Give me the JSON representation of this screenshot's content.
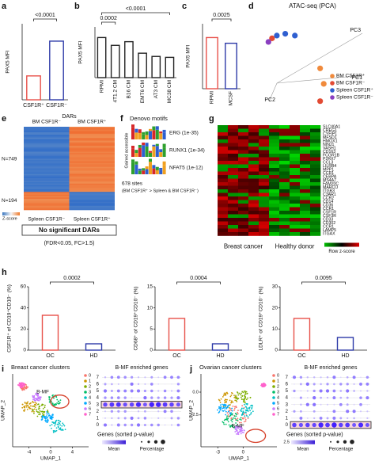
{
  "chart_data": [
    {
      "panel": "a",
      "type": "bar",
      "ylabel": "PAX5 MFI",
      "categories": [
        "CSF1R⁺",
        "CSF1R⁻"
      ],
      "values": [
        1100,
        2700
      ],
      "colors": [
        "#e8514a",
        "#2d3aa8"
      ],
      "ylim": [
        0,
        3500
      ],
      "annotations": [
        "<0.0001"
      ]
    },
    {
      "panel": "b",
      "type": "bar",
      "ylabel": "PAX5 MFI",
      "categories": [
        "RPMI",
        "4T1.2 CM",
        "B16 CM",
        "EMT6 CM",
        "AT3 CM",
        "MC38 CM"
      ],
      "values": [
        870,
        700,
        780,
        530,
        460,
        440
      ],
      "colors": [
        "#222222",
        "#222222",
        "#222222",
        "#222222",
        "#222222",
        "#222222"
      ],
      "ylim": [
        0,
        1100
      ],
      "annotations": [
        "0.0002",
        "<0.0001"
      ]
    },
    {
      "panel": "c",
      "type": "bar",
      "ylabel": "PAX5 MFI",
      "categories": [
        "RPMI",
        "MCSF"
      ],
      "values": [
        3150,
        2800
      ],
      "colors": [
        "#e8514a",
        "#2d3aa8"
      ],
      "ylim": [
        0,
        4000
      ],
      "annotations": [
        "0.0025"
      ]
    },
    {
      "panel": "d",
      "type": "scatter",
      "title": "ATAC-seq (PCA)",
      "axis_labels": [
        "PC1",
        "PC2",
        "PC3"
      ],
      "xlim": [
        0,
        100
      ],
      "ylim": [
        0,
        100
      ],
      "series": [
        {
          "name": "BM CSF1R⁺",
          "color": "#f08a3c",
          "x": [
            57,
            60
          ],
          "y": [
            38,
            21
          ]
        },
        {
          "name": "BM CSF1R⁻",
          "color": "#e24a33",
          "x": [
            57,
            17
          ],
          "y": [
            2,
            71
          ]
        },
        {
          "name": "Spleen CSF1R⁺",
          "color": "#2f5fd0",
          "x": [
            21,
            28,
            36
          ],
          "y": [
            74,
            76,
            74
          ]
        },
        {
          "name": "Spleen CSF1R⁻",
          "color": "#8a3fc0",
          "x": [
            14
          ],
          "y": [
            67
          ]
        }
      ]
    },
    {
      "panel": "e",
      "type": "heatmap",
      "title": "DARs",
      "columns": [
        "BM CSF1R⁻",
        "BM CSF1R⁺"
      ],
      "row_groups": [
        "N=749",
        "N=194"
      ],
      "key_label": "Z-score",
      "lower_columns": [
        "Spleen CSF1R⁻",
        "Spleen CSF1R⁺"
      ],
      "note": "No significant DARs",
      "criteria": "(FDR<0.05, FC>1.5)"
    },
    {
      "panel": "f",
      "type": "motifs",
      "title": "Denovo motifs",
      "ylabel": "Gained accessible",
      "motifs": [
        "ERG (1e-35)",
        "RUNX1 (1e-34)",
        "NFAT5 (1e-12)"
      ],
      "sites": "678 sites",
      "comparison": "(BM CSF1R⁺ > Spleen & BM CSF1R⁻)"
    },
    {
      "panel": "g",
      "type": "heatmap",
      "genes": [
        "SLC40A1",
        "CREG1",
        "CYFIP1",
        "MFSD1",
        "HMOX1",
        "NINJ1",
        "VASH1",
        "CD163",
        "FCGR1B",
        "P2RX7",
        "CCL3",
        "LILRB4",
        "MPP1",
        "CCR1",
        "CEBPA",
        "MS4A7",
        "FAM20C",
        "MARCO",
        "ITGB3",
        "C3AR1",
        "CCR2",
        "CD14",
        "CD36",
        "CCR1",
        "CSF1R",
        "CSF3R",
        "CD33",
        "CD302",
        "CCR1",
        "LAMP5",
        "ITGAX"
      ],
      "groups": [
        "Breast cancer",
        "Healthy donor"
      ],
      "key_label": "Row z-score"
    },
    {
      "panel": "h",
      "type": "bar",
      "ylabel": "CSF1R⁺ of CD19⁺CD10⁻ (%)",
      "categories": [
        "OC",
        "HD"
      ],
      "values": [
        33,
        6
      ],
      "colors": [
        "#e8514a",
        "#2d3aa8"
      ],
      "ylim": [
        0,
        60
      ],
      "yticks": [
        0,
        20,
        40,
        60
      ],
      "annotations": [
        "0.0002"
      ]
    },
    {
      "type": "bar",
      "ylabel": "CD68⁺ of CD19⁺CD10⁻ (%)",
      "categories": [
        "OC",
        "HD"
      ],
      "values": [
        7.5,
        1.5
      ],
      "colors": [
        "#e8514a",
        "#2d3aa8"
      ],
      "ylim": [
        0,
        15
      ],
      "yticks": [
        0,
        5,
        10,
        15
      ],
      "annotations": [
        "0.0004"
      ]
    },
    {
      "type": "bar",
      "ylabel": "LDLR⁺ of CD19⁺CD10⁻ (%)",
      "categories": [
        "OC",
        "HD"
      ],
      "values": [
        15,
        6
      ],
      "colors": [
        "#e8514a",
        "#2d3aa8"
      ],
      "ylim": [
        0,
        30
      ],
      "yticks": [
        0,
        10,
        20,
        30
      ],
      "annotations": [
        "0.0095"
      ]
    },
    {
      "panel": "i",
      "type": "umap",
      "title": "Breast cancer clusters",
      "highlight": "B-MF",
      "highlight_cluster": "3",
      "xlabel": "UMAP_1",
      "ylabel": "UMAP_2",
      "xlim": [
        -7,
        7
      ],
      "xticks": [
        -4,
        0,
        4
      ],
      "clusters": [
        "0",
        "1",
        "2",
        "3",
        "4",
        "5",
        "6",
        "7"
      ],
      "cluster_colors": [
        "#F8766D",
        "#CD9600",
        "#7CAE00",
        "#00BE67",
        "#00BFC4",
        "#00A9FF",
        "#C77CFF",
        "#FF61CC"
      ],
      "dot_title": "B-MF enriched genes",
      "dot_xlabel": "Genes (sorted p-value)",
      "legend_labels": [
        "Mean",
        "Percentage"
      ]
    },
    {
      "panel": "j",
      "type": "umap",
      "title": "Ovarian cancer clusters",
      "highlight": "B-MF",
      "highlight_cluster": "0",
      "xlabel": "UMAP_1",
      "ylabel": "UMAP_2",
      "xlim": [
        -5,
        4
      ],
      "xticks": [
        -3,
        0
      ],
      "ylim": [
        -6,
        2
      ],
      "yticks": [
        {
          "value": 0,
          "label": "0.0"
        },
        {
          "value": -2.5,
          "label": "-2.5"
        }
      ],
      "clusters": [
        "0",
        "1",
        "2",
        "3",
        "4",
        "5",
        "6",
        "7"
      ],
      "cluster_colors": [
        "#F8766D",
        "#CD9600",
        "#7CAE00",
        "#00BE67",
        "#00BFC4",
        "#00A9FF",
        "#C77CFF",
        "#FF61CC"
      ],
      "dot_title": "B-MF enriched genes",
      "dot_xlabel": "Genes (sorted p-value)",
      "legend_labels": [
        "Mean",
        "Percentage"
      ],
      "mean_label": "2.5"
    }
  ]
}
